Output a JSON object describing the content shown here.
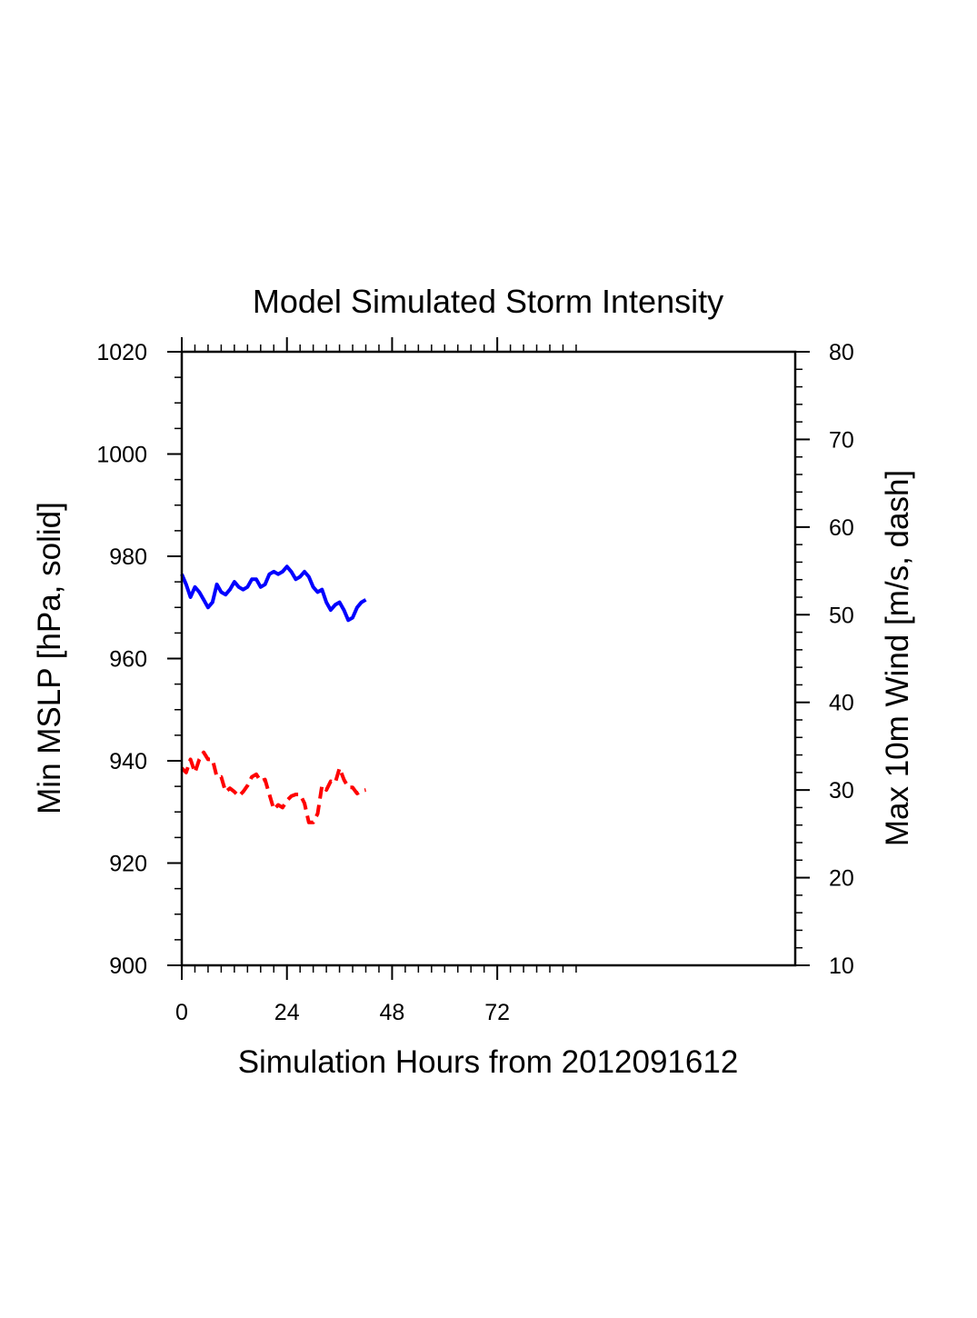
{
  "chart_data": {
    "type": "line",
    "title": "Model Simulated Storm Intensity",
    "xlabel": "Simulation Hours from 2012091612",
    "ylabel_left": "Min MSLP  [hPa, solid]",
    "ylabel_right": "Max 10m Wind  [m/s, dash]",
    "xlim": [
      0,
      140
    ],
    "ylim_left": [
      900,
      1020
    ],
    "ylim_right": [
      10,
      80
    ],
    "x_major_ticks": [
      0,
      24,
      48,
      72
    ],
    "x_minor_step": 3,
    "x_minor_max": 90,
    "left_major_ticks": [
      900,
      920,
      940,
      960,
      980,
      1000,
      1020
    ],
    "left_minor_step": 5,
    "right_major_ticks": [
      10,
      20,
      30,
      40,
      50,
      60,
      70,
      80
    ],
    "right_minor_step": 2,
    "grid": false,
    "series": [
      {
        "name": "Min MSLP",
        "axis": "left",
        "style": "solid",
        "color": "#0000ff",
        "x": [
          0,
          1,
          2,
          3,
          4,
          5,
          6,
          7,
          8,
          9,
          10,
          11,
          12,
          13,
          14,
          15,
          16,
          17,
          18,
          19,
          20,
          21,
          22,
          23,
          24,
          25,
          26,
          27,
          28,
          29,
          30,
          31,
          32,
          33,
          34,
          35,
          36,
          37,
          38,
          39,
          40,
          41,
          42
        ],
        "values": [
          976.5,
          974.5,
          972.0,
          974.0,
          973.0,
          971.5,
          970.0,
          971.0,
          974.5,
          973.0,
          972.5,
          973.5,
          975.0,
          974.0,
          973.5,
          974.0,
          975.5,
          975.5,
          974.0,
          974.5,
          976.5,
          977.0,
          976.5,
          977.0,
          978.0,
          977.0,
          975.5,
          976.0,
          977.0,
          976.0,
          974.0,
          973.0,
          973.5,
          971.0,
          969.5,
          970.5,
          971.0,
          969.5,
          967.5,
          968.0,
          970.0,
          971.0,
          971.5
        ]
      },
      {
        "name": "Max 10m Wind",
        "axis": "right",
        "style": "dashed",
        "color": "#ff0000",
        "x": [
          0,
          1,
          2,
          3,
          4,
          5,
          6,
          7,
          8,
          9,
          10,
          11,
          12,
          13,
          14,
          15,
          16,
          17,
          18,
          19,
          20,
          21,
          22,
          23,
          24,
          25,
          26,
          27,
          28,
          29,
          30,
          31,
          32,
          33,
          34,
          35,
          36,
          37,
          38,
          39,
          40,
          41,
          42
        ],
        "values": [
          32.5,
          32.0,
          33.5,
          32.0,
          33.5,
          34.3,
          33.5,
          33.5,
          31.5,
          31.5,
          29.8,
          30.2,
          29.8,
          29.3,
          29.8,
          30.5,
          31.5,
          31.8,
          31.0,
          31.2,
          29.5,
          27.8,
          28.3,
          28.0,
          28.8,
          29.3,
          29.5,
          29.5,
          28.5,
          26.3,
          26.3,
          27.3,
          30.5,
          30.0,
          31.0,
          30.8,
          32.5,
          31.2,
          30.3,
          30.3,
          29.6,
          29.9,
          30.0
        ]
      }
    ]
  }
}
